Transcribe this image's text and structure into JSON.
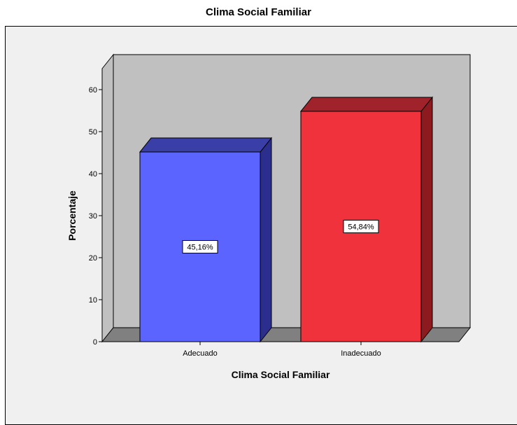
{
  "chart_data": {
    "type": "bar",
    "title": "Clima Social Familiar",
    "xlabel": "Clima Social Familiar",
    "ylabel": "Porcentaje",
    "categories": [
      "Adecuado",
      "Inadecuado"
    ],
    "values": [
      45.16,
      54.84
    ],
    "data_labels": [
      "45,16%",
      "54,84%"
    ],
    "ylim": [
      0,
      65
    ],
    "yticks": [
      0,
      10,
      20,
      30,
      40,
      50,
      60
    ],
    "three_d": true,
    "grid": false,
    "colors": {
      "bars": [
        "#5b64ff",
        "#f0323c"
      ],
      "bar_sides": [
        "#2c2e8e",
        "#8c1a1e"
      ],
      "bar_tops": [
        "#3a3fa8",
        "#a0222a"
      ],
      "plot_back": "#c0c0c0",
      "plot_floor": "#808080",
      "panel": "#f0f0f0"
    }
  }
}
